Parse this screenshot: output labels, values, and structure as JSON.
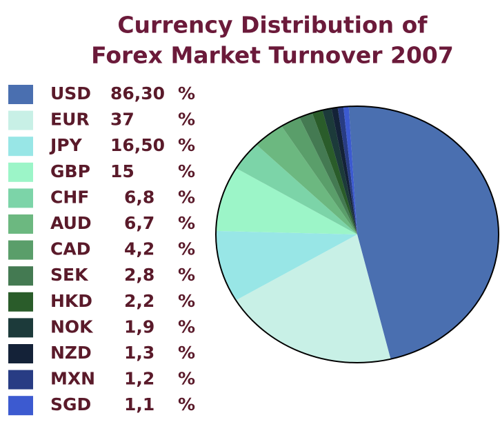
{
  "chart_data": {
    "type": "pie",
    "title": [
      "Currency Distribution of",
      "Forex Market Turnover 2007"
    ],
    "categories": [
      "USD",
      "EUR",
      "JPY",
      "GBP",
      "CHF",
      "AUD",
      "CAD",
      "SEK",
      "HKD",
      "NOK",
      "NZD",
      "MXN",
      "SGD"
    ],
    "values": [
      86.3,
      37,
      16.5,
      15,
      6.8,
      6.7,
      4.2,
      2.8,
      2.2,
      1.9,
      1.3,
      1.2,
      1.1
    ],
    "value_labels": [
      "86,30",
      "37",
      "16,50",
      "15",
      "6,8",
      "6,7",
      "4,2",
      "2,8",
      "2,2",
      "1,9",
      "1,3",
      "1,2",
      "1,1"
    ],
    "unit": "%",
    "colors": [
      "#4a6fb0",
      "#c8f0e6",
      "#98e6e6",
      "#9cf5c8",
      "#7cd4a8",
      "#6cb880",
      "#5a9e6a",
      "#447a52",
      "#2a5c2a",
      "#1c3a3a",
      "#142238",
      "#283c84",
      "#3c5ad0"
    ],
    "legend": "left"
  }
}
